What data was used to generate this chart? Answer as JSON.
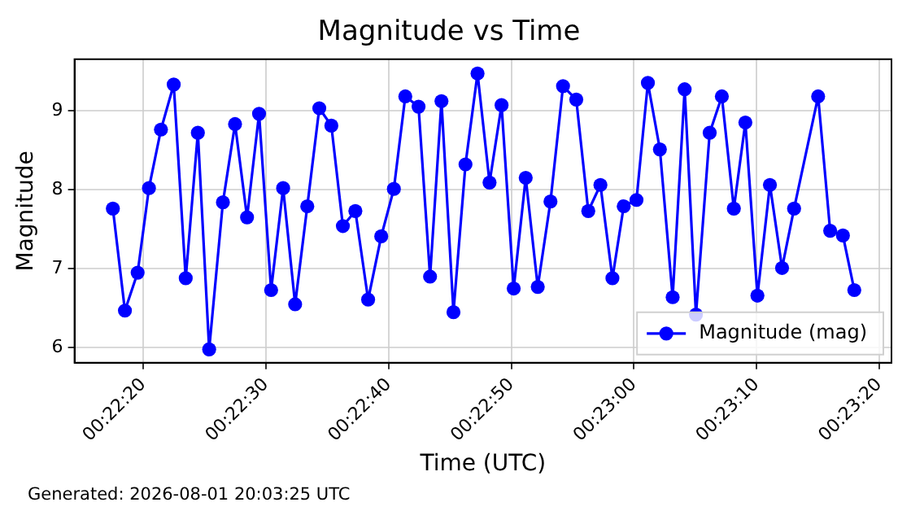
{
  "chart_data": {
    "type": "line",
    "title": "Magnitude vs Time",
    "xlabel": "Time (UTC)",
    "ylabel": "Magnitude",
    "x": [
      0.371533,
      0.371806,
      0.372094,
      0.37235,
      0.372622,
      0.372911,
      0.373183,
      0.373458,
      0.373714,
      0.374025,
      0.3743,
      0.374572,
      0.374844,
      0.375117,
      0.375389,
      0.375661,
      0.375936,
      0.376208,
      0.376481,
      0.376742,
      0.377025,
      0.377314,
      0.377611,
      0.377897,
      0.378156,
      0.378456,
      0.378717,
      0.378975,
      0.379247,
      0.379519,
      0.379792,
      0.380064,
      0.380336,
      0.380611,
      0.380883,
      0.381156,
      0.381444,
      0.381728,
      0.382028,
      0.3823,
      0.382575,
      0.382847,
      0.383103,
      0.383392,
      0.38365,
      0.383922,
      0.384211,
      0.384483,
      0.384739,
      0.38505,
      0.385325,
      0.385597,
      0.385858,
      0.386131,
      0.386414,
      0.386689,
      0.386961,
      0.387506,
      0.387778,
      0.388067,
      0.388325
    ],
    "series": [
      {
        "name": "Magnitude (mag)",
        "color": "#0000ff",
        "values": [
          7.76,
          6.47,
          6.95,
          8.02,
          8.76,
          9.33,
          6.88,
          8.72,
          5.98,
          7.84,
          8.83,
          7.65,
          8.96,
          6.73,
          8.02,
          6.55,
          7.79,
          9.03,
          8.81,
          7.54,
          7.73,
          6.61,
          7.41,
          8.01,
          9.18,
          9.05,
          6.9,
          9.12,
          6.45,
          8.32,
          9.47,
          8.09,
          9.07,
          6.75,
          8.15,
          6.77,
          7.85,
          9.31,
          9.14,
          7.73,
          8.06,
          6.88,
          7.79,
          7.87,
          9.35,
          8.51,
          6.64,
          9.27,
          6.42,
          8.72,
          9.18,
          7.76,
          8.85,
          6.66,
          8.06,
          7.01,
          7.76,
          9.18,
          7.48,
          7.42,
          6.73
        ]
      }
    ],
    "xlim": [
      0.370664,
      0.389167
    ],
    "xticks": [
      {
        "value": 0.372222,
        "label": "00:22:20"
      },
      {
        "value": 0.375,
        "label": "00:22:30"
      },
      {
        "value": 0.377778,
        "label": "00:22:40"
      },
      {
        "value": 0.380556,
        "label": "00:22:50"
      },
      {
        "value": 0.383333,
        "label": "00:23:00"
      },
      {
        "value": 0.386111,
        "label": "00:23:10"
      },
      {
        "value": 0.388889,
        "label": "00:23:20"
      }
    ],
    "ylim": [
      5.81,
      9.65
    ],
    "yticks": [
      6,
      7,
      8,
      9
    ],
    "grid": true,
    "legend": "bottom right",
    "marker": "circle",
    "line_style": "solid",
    "annotations": [
      "Generated: 2026-08-01 20:03:25 UTC"
    ]
  }
}
